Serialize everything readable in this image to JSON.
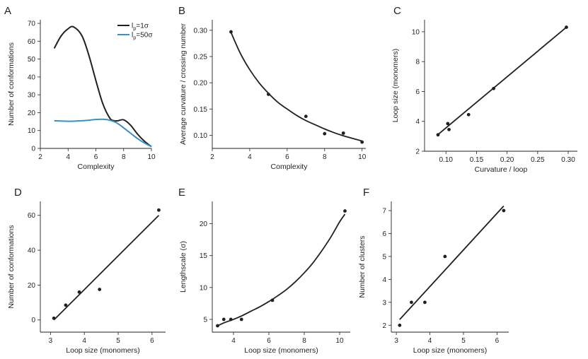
{
  "chart_data": [
    {
      "panel": "A",
      "type": "line",
      "xlabel": "Complexity",
      "ylabel": "Number of conformations",
      "xlim": [
        2,
        10
      ],
      "ylim": [
        0,
        72
      ],
      "xticks": [
        2,
        4,
        6,
        8,
        10
      ],
      "yticks": [
        0,
        10,
        20,
        30,
        40,
        50,
        60,
        70
      ],
      "legend": {
        "placement": "top-right",
        "entries": [
          {
            "main": "l",
            "sub": "p",
            "suffix": "=1σ",
            "color": "#231f20"
          },
          {
            "main": "l",
            "sub": "p",
            "suffix": "=50σ",
            "color": "#3a8fc4"
          }
        ]
      },
      "series": [
        {
          "color": "#231f20",
          "x": [
            3,
            3.5,
            4,
            4.4,
            5,
            5.5,
            6,
            6.5,
            7,
            7.3,
            7.6,
            8,
            8.5,
            9,
            9.5,
            10
          ],
          "y": [
            56,
            63,
            67,
            68,
            63,
            52,
            38,
            25,
            17,
            15.5,
            15.5,
            16,
            13,
            8,
            4,
            1
          ]
        },
        {
          "color": "#3a8fc4",
          "x": [
            3,
            4,
            5,
            5.5,
            6,
            6.5,
            7,
            7.5,
            8,
            8.5,
            9,
            9.5,
            10
          ],
          "y": [
            15.5,
            15.2,
            15.5,
            15.8,
            16.2,
            16.3,
            15.8,
            14.3,
            11.5,
            8.5,
            5.5,
            3,
            1
          ]
        }
      ]
    },
    {
      "panel": "B",
      "type": "scatter",
      "xlabel": "Complexity",
      "ylabel": "Average curvature / crossing number",
      "xlim": [
        2,
        10.2
      ],
      "ylim": [
        0.075,
        0.32
      ],
      "xticks": [
        2,
        4,
        6,
        8,
        10
      ],
      "yticks": [
        0.1,
        0.15,
        0.2,
        0.25,
        0.3
      ],
      "ytick_labels": [
        "0.10",
        "0.15",
        "0.20",
        "0.25",
        "0.30"
      ],
      "points": {
        "x": [
          3,
          5,
          7,
          8,
          9,
          10
        ],
        "y": [
          0.297,
          0.178,
          0.136,
          0.103,
          0.104,
          0.087
        ]
      },
      "fit": {
        "x": [
          3,
          3.5,
          4,
          4.5,
          5,
          5.5,
          6,
          6.5,
          7,
          7.5,
          8,
          8.5,
          9,
          9.5,
          10
        ],
        "y": [
          0.296,
          0.256,
          0.225,
          0.2,
          0.18,
          0.163,
          0.15,
          0.138,
          0.128,
          0.12,
          0.112,
          0.105,
          0.099,
          0.094,
          0.089
        ]
      }
    },
    {
      "panel": "C",
      "type": "scatter",
      "xlabel": "Curvature / loop",
      "ylabel": "Loop size (monomers)",
      "xlim": [
        0.065,
        0.315
      ],
      "ylim": [
        2,
        10.8
      ],
      "xticks": [
        0.1,
        0.15,
        0.2,
        0.25,
        0.3
      ],
      "xtick_labels": [
        "0.10",
        "0.15",
        "0.20",
        "0.25",
        "0.30"
      ],
      "yticks": [
        2,
        4,
        6,
        8,
        10
      ],
      "points": {
        "x": [
          0.087,
          0.103,
          0.105,
          0.137,
          0.178,
          0.297
        ],
        "y": [
          3.1,
          3.85,
          3.45,
          4.45,
          6.2,
          10.3
        ]
      },
      "fit": {
        "x": [
          0.085,
          0.297
        ],
        "y": [
          3.05,
          10.3
        ]
      }
    },
    {
      "panel": "D",
      "type": "scatter",
      "xlabel": "Loop size (monomers)",
      "ylabel": "Number of conformations",
      "xlim": [
        2.7,
        6.4
      ],
      "ylim": [
        -7,
        68
      ],
      "xticks": [
        3,
        4,
        5,
        6
      ],
      "yticks": [
        0,
        20,
        40,
        60
      ],
      "points": {
        "x": [
          3.1,
          3.45,
          3.85,
          4.45,
          6.2
        ],
        "y": [
          1,
          8.5,
          16,
          17.5,
          63
        ]
      },
      "fit": {
        "x": [
          3.1,
          6.2
        ],
        "y": [
          0,
          60
        ]
      }
    },
    {
      "panel": "E",
      "type": "scatter",
      "xlabel": "Loop size (monomers)",
      "ylabel": "Lengthscale (σ)",
      "xlim": [
        2.8,
        10.6
      ],
      "ylim": [
        3,
        23.5
      ],
      "xticks": [
        4,
        6,
        8,
        10
      ],
      "yticks": [
        5,
        10,
        15,
        20
      ],
      "points": {
        "x": [
          3.1,
          3.45,
          3.85,
          4.45,
          6.2,
          10.3
        ],
        "y": [
          4,
          5,
          5,
          5,
          8,
          22
        ]
      },
      "fit": {
        "x": [
          3.1,
          3.5,
          4,
          4.5,
          5,
          5.5,
          6,
          6.5,
          7,
          7.5,
          8,
          8.5,
          9,
          9.5,
          10,
          10.3
        ],
        "y": [
          4,
          4.5,
          5,
          5.6,
          6.3,
          7,
          7.8,
          8.7,
          9.7,
          10.9,
          12.3,
          13.9,
          15.8,
          17.9,
          20.3,
          21.5
        ]
      }
    },
    {
      "panel": "F",
      "type": "scatter",
      "xlabel": "Loop size (monomers)",
      "ylabel": "Number of clusters",
      "xlim": [
        2.85,
        6.35
      ],
      "ylim": [
        1.7,
        7.4
      ],
      "xticks": [
        3,
        4,
        5,
        6
      ],
      "yticks": [
        2,
        3,
        4,
        5,
        6,
        7
      ],
      "points": {
        "x": [
          3.1,
          3.45,
          3.85,
          4.45,
          6.2
        ],
        "y": [
          2,
          3,
          3,
          5,
          7
        ]
      },
      "fit": {
        "x": [
          3.1,
          6.2
        ],
        "y": [
          2.25,
          7.2
        ]
      }
    }
  ]
}
